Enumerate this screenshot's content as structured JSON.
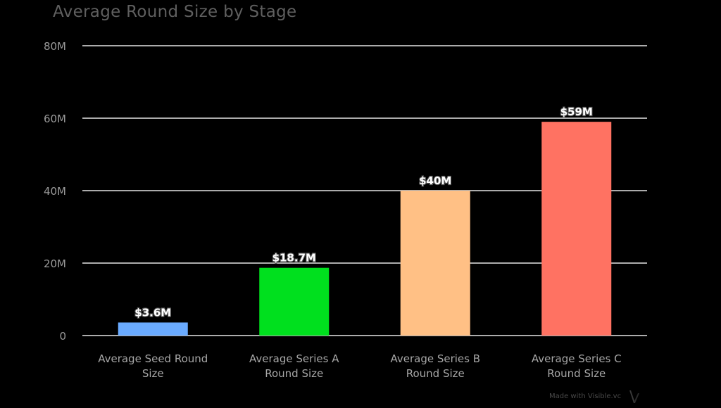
{
  "chart_data": {
    "type": "bar",
    "title": "Average Round Size by Stage",
    "categories": [
      [
        "Average Seed Round",
        "Size"
      ],
      [
        "Average Series A",
        "Round Size"
      ],
      [
        "Average Series B",
        "Round Size"
      ],
      [
        "Average Series C",
        "Round Size"
      ]
    ],
    "values": [
      3.6,
      18.7,
      40,
      59
    ],
    "data_labels": [
      "$3.6M",
      "$18.7M",
      "$40M",
      "$59M"
    ],
    "colors": [
      "#6aabff",
      "#00e01e",
      "#ffc085",
      "#ff7262"
    ],
    "ylim": [
      0,
      80
    ],
    "yticks": [
      0,
      20,
      40,
      60,
      80
    ],
    "ytick_labels": [
      "0",
      "20M",
      "40M",
      "60M",
      "80M"
    ],
    "xlabel": "",
    "ylabel": "",
    "grid": true,
    "grid_color": "#e6e6e6",
    "background": "#000000"
  },
  "footer": {
    "watermark": "Made with Visible.vc"
  }
}
